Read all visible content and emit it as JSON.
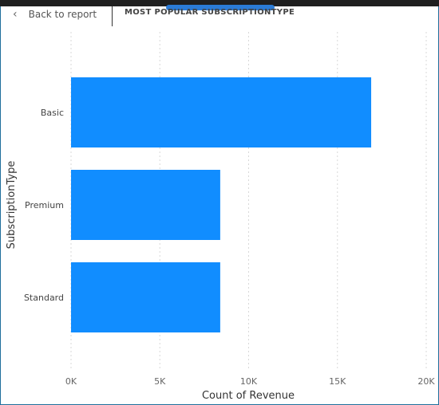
{
  "header": {
    "back_label": "Back to report",
    "title": "MOST POPULAR SUBSCRIPTIONTYPE"
  },
  "colors": {
    "bar": "#118DFF",
    "grid": "#d8d8d8"
  },
  "chart_data": {
    "type": "bar",
    "orientation": "horizontal",
    "categories": [
      "Basic",
      "Premium",
      "Standard"
    ],
    "values": [
      16900,
      8400,
      8400
    ],
    "xlabel": "Count of Revenue",
    "ylabel": "SubscriptionType",
    "xlim": [
      0,
      20000
    ],
    "xticks": [
      0,
      5000,
      10000,
      15000,
      20000
    ],
    "xtick_labels": [
      "0K",
      "5K",
      "10K",
      "15K",
      "20K"
    ],
    "grid": "vertical dotted"
  }
}
